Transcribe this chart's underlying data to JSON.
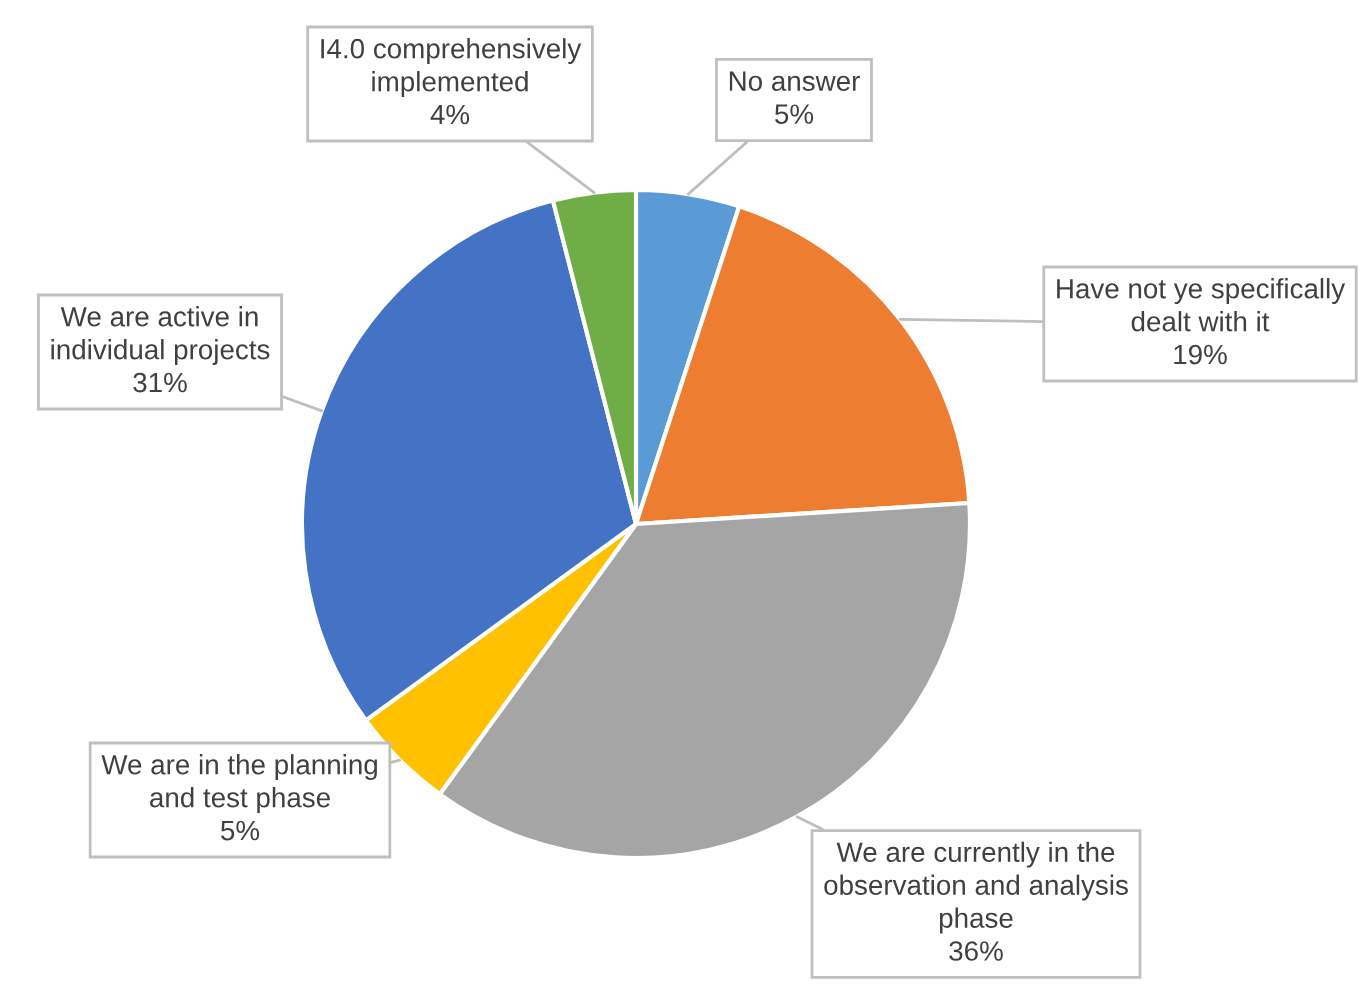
{
  "chart_data": {
    "type": "pie",
    "categories": [
      "No answer",
      "Have not ye specifically\ndealt with it",
      "We are currently in the\nobservation and analysis\nphase",
      "We are in the planning\nand test phase",
      "We are active in\nindividual projects",
      "I4.0 comprehensively\nimplemented"
    ],
    "values": [
      5,
      19,
      36,
      5,
      31,
      4
    ],
    "value_labels": [
      "5%",
      "19%",
      "36%",
      "5%",
      "31%",
      "4%"
    ],
    "colors": [
      "#5b9bd5",
      "#ed7d31",
      "#a5a5a5",
      "#ffc000",
      "#4472c4",
      "#70ad47"
    ],
    "legend": false
  }
}
